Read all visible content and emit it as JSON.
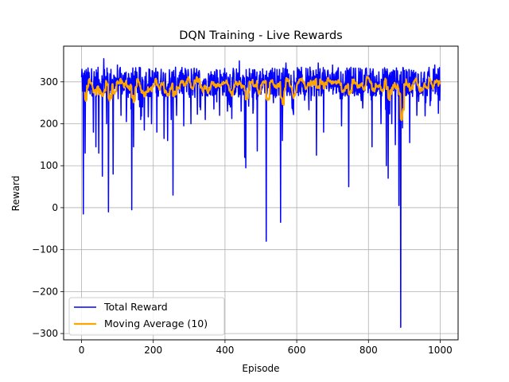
{
  "chart_data": {
    "type": "line",
    "title": "DQN Training - Live Rewards",
    "xlabel": "Episode",
    "ylabel": "Reward",
    "xlim": [
      -50,
      1050
    ],
    "ylim": [
      -315,
      385
    ],
    "x_ticks": [
      0,
      200,
      400,
      600,
      800,
      1000
    ],
    "y_ticks": [
      -300,
      -200,
      -100,
      0,
      100,
      200,
      300
    ],
    "grid": true,
    "legend_position": "lower-left",
    "colors": {
      "total_reward": "#0000ff",
      "moving_average": "#ffa500"
    },
    "episodes": [
      0,
      1000
    ],
    "series": [
      {
        "name": "Total Reward",
        "baseline": 300,
        "noise_amplitude": 35,
        "dips": [
          [
            1,
            330
          ],
          [
            5,
            -15
          ],
          [
            10,
            130
          ],
          [
            20,
            280
          ],
          [
            33,
            180
          ],
          [
            40,
            145
          ],
          [
            48,
            130
          ],
          [
            58,
            75
          ],
          [
            70,
            200
          ],
          [
            75,
            -10
          ],
          [
            88,
            80
          ],
          [
            110,
            220
          ],
          [
            125,
            205
          ],
          [
            140,
            -5
          ],
          [
            145,
            145
          ],
          [
            165,
            210
          ],
          [
            175,
            185
          ],
          [
            195,
            200
          ],
          [
            210,
            180
          ],
          [
            230,
            165
          ],
          [
            240,
            160
          ],
          [
            250,
            210
          ],
          [
            255,
            30
          ],
          [
            265,
            220
          ],
          [
            285,
            195
          ],
          [
            305,
            200
          ],
          [
            330,
            240
          ],
          [
            345,
            210
          ],
          [
            385,
            220
          ],
          [
            415,
            240
          ],
          [
            445,
            230
          ],
          [
            455,
            120
          ],
          [
            458,
            95
          ],
          [
            490,
            135
          ],
          [
            515,
            -80
          ],
          [
            535,
            250
          ],
          [
            555,
            -35
          ],
          [
            560,
            160
          ],
          [
            590,
            230
          ],
          [
            655,
            125
          ],
          [
            675,
            180
          ],
          [
            700,
            210
          ],
          [
            725,
            195
          ],
          [
            745,
            50
          ],
          [
            780,
            255
          ],
          [
            810,
            145
          ],
          [
            835,
            200
          ],
          [
            850,
            100
          ],
          [
            855,
            70
          ],
          [
            865,
            200
          ],
          [
            875,
            150
          ],
          [
            885,
            5
          ],
          [
            890,
            -285
          ],
          [
            895,
            190
          ],
          [
            915,
            155
          ],
          [
            935,
            220
          ],
          [
            960,
            250
          ],
          [
            985,
            185
          ],
          [
            995,
            225
          ]
        ],
        "peaks": [
          [
            62,
            355
          ],
          [
            100,
            340
          ],
          [
            440,
            350
          ],
          [
            570,
            345
          ],
          [
            660,
            345
          ],
          [
            700,
            340
          ],
          [
            985,
            340
          ]
        ]
      },
      {
        "name": "Moving Average (10)",
        "window": 10
      }
    ]
  }
}
